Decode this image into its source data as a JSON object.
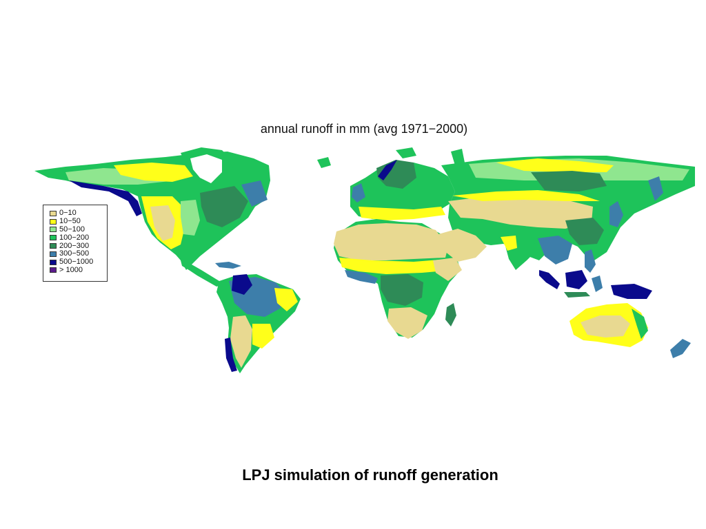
{
  "map": {
    "title": "annual runoff in mm (avg 1971−2000)",
    "legend": [
      {
        "label": "0−10",
        "color": "#e8d991"
      },
      {
        "label": "10−50",
        "color": "#ffff1a"
      },
      {
        "label": "50−100",
        "color": "#8fe68f"
      },
      {
        "label": "100−200",
        "color": "#1ec35a"
      },
      {
        "label": "200−300",
        "color": "#2e8b57"
      },
      {
        "label": "300−500",
        "color": "#3d7eaa"
      },
      {
        "label": "500−1000",
        "color": "#0a0a8c"
      },
      {
        "label": "> 1000",
        "color": "#5b1a8c"
      }
    ]
  },
  "caption": "LPJ simulation of runoff generation"
}
